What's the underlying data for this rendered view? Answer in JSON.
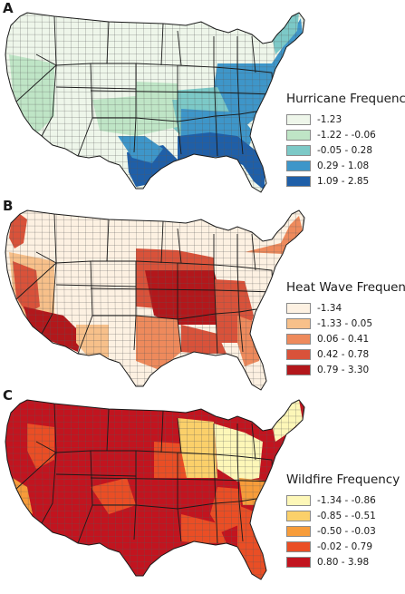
{
  "panels": [
    {
      "letter": "A",
      "legend_title": "Hurricane Frequency",
      "legend": [
        {
          "label": "-1.23",
          "color": "#eef6ea"
        },
        {
          "label": "-1.22 - -0.06",
          "color": "#bfe5c6"
        },
        {
          "label": "-0.05 - 0.28",
          "color": "#7cc9c7"
        },
        {
          "label": "0.29 - 1.08",
          "color": "#3e96c9"
        },
        {
          "label": "1.09 - 2.85",
          "color": "#1f5fa8"
        }
      ]
    },
    {
      "letter": "B",
      "legend_title": "Heat Wave Frequency",
      "legend": [
        {
          "label": "-1.34",
          "color": "#fdf1e2"
        },
        {
          "label": "-1.33 - 0.05",
          "color": "#f7c08a"
        },
        {
          "label": "0.06 - 0.41",
          "color": "#ee8a5c"
        },
        {
          "label": "0.42 - 0.78",
          "color": "#d9523a"
        },
        {
          "label": "0.79 - 3.30",
          "color": "#b3171b"
        }
      ]
    },
    {
      "letter": "C",
      "legend_title": "Wildfire Frequency",
      "legend": [
        {
          "label": "-1.34 - -0.86",
          "color": "#fdf7b8"
        },
        {
          "label": "-0.85 - -0.51",
          "color": "#fbd06a"
        },
        {
          "label": "-0.50 - -0.03",
          "color": "#f79c3a"
        },
        {
          "label": "-0.02 - 0.79",
          "color": "#ea4e25"
        },
        {
          "label": "0.80 - 3.98",
          "color": "#c2141f"
        }
      ]
    }
  ]
}
